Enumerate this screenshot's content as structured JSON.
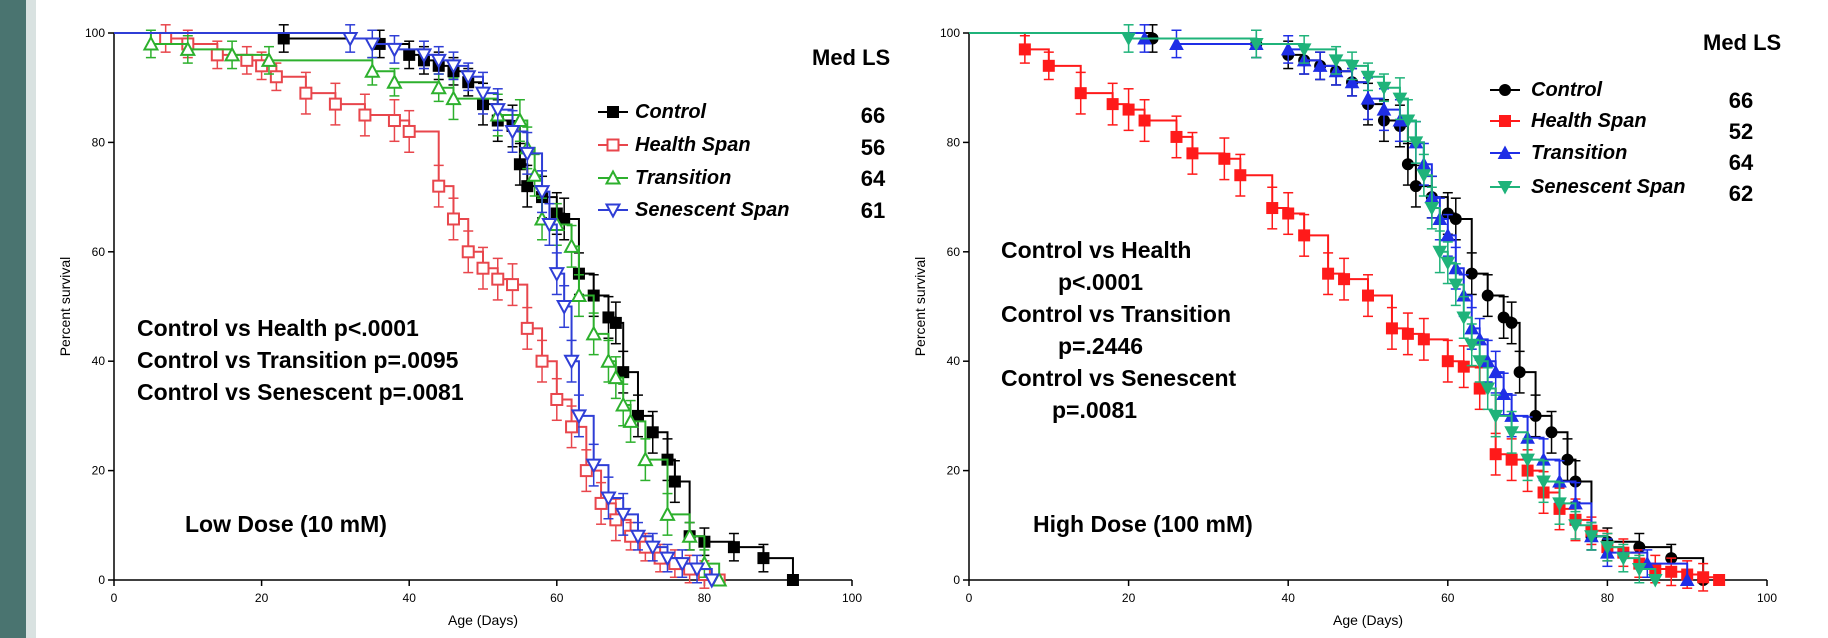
{
  "theme": {
    "strip_color": "#4a7470",
    "strip_light": "#d9e2e1"
  },
  "chart_data": [
    {
      "type": "line",
      "xlabel": "Age (Days)",
      "ylabel": "Percent survival",
      "xlim": [
        0,
        100
      ],
      "ylim": [
        0,
        100
      ],
      "xticks": [
        0,
        20,
        40,
        60,
        80,
        100
      ],
      "yticks": [
        0,
        20,
        40,
        60,
        80,
        100
      ],
      "step": true,
      "label": "Low Dose (10 mM)",
      "med_ls_header": "Med LS",
      "legend_position": "top-right",
      "annotations": [
        "Control vs  Health  p<.0001",
        "Control vs Transition p=.0095",
        "Control vs Senescent p=.0081"
      ],
      "series": [
        {
          "name": "Control",
          "marker": "square-filled",
          "color": "#000000",
          "med_ls": "66",
          "x": [
            0,
            23,
            36,
            40,
            42,
            44,
            46,
            48,
            50,
            52,
            54,
            55,
            56,
            58,
            60,
            61,
            63,
            65,
            67,
            68,
            69,
            71,
            73,
            75,
            76,
            78,
            80,
            84,
            88,
            92
          ],
          "y": [
            100,
            99,
            98,
            96,
            95,
            94,
            93,
            91,
            87,
            84,
            83,
            76,
            72,
            70,
            67,
            66,
            56,
            52,
            48,
            47,
            38,
            30,
            27,
            22,
            18,
            8,
            7,
            6,
            4,
            0
          ]
        },
        {
          "name": "Health Span",
          "marker": "square-open",
          "color": "#e8464c",
          "med_ls": "56",
          "x": [
            0,
            7,
            10,
            14,
            18,
            20,
            22,
            26,
            30,
            34,
            38,
            40,
            44,
            46,
            48,
            50,
            52,
            54,
            56,
            58,
            60,
            62,
            64,
            66,
            68,
            70,
            72,
            74,
            76,
            78,
            80,
            82
          ],
          "y": [
            100,
            99,
            98,
            96,
            95,
            94,
            92,
            89,
            87,
            85,
            84,
            82,
            72,
            66,
            60,
            57,
            55,
            54,
            46,
            40,
            33,
            28,
            20,
            14,
            11,
            8,
            6,
            4,
            3,
            2,
            1,
            0
          ]
        },
        {
          "name": "Transition",
          "marker": "triangle-open",
          "color": "#2db02d",
          "med_ls": "64",
          "x": [
            0,
            5,
            10,
            16,
            21,
            35,
            38,
            44,
            46,
            52,
            55,
            56,
            57,
            58,
            60,
            62,
            63,
            65,
            67,
            68,
            69,
            70,
            72,
            75,
            78,
            80,
            82
          ],
          "y": [
            100,
            98,
            97,
            96,
            95,
            93,
            91,
            90,
            88,
            85,
            84,
            79,
            74,
            66,
            65,
            61,
            52,
            45,
            40,
            37,
            32,
            29,
            22,
            12,
            8,
            3,
            0
          ]
        },
        {
          "name": "Senescent Span",
          "marker": "triangle-down-open",
          "color": "#2f3ed6",
          "med_ls": "61",
          "x": [
            0,
            32,
            35,
            38,
            42,
            44,
            46,
            48,
            50,
            52,
            54,
            56,
            58,
            59,
            60,
            61,
            62,
            63,
            65,
            67,
            69,
            71,
            73,
            75,
            77,
            79,
            81
          ],
          "y": [
            100,
            99,
            98,
            97,
            96,
            95,
            94,
            92,
            89,
            86,
            82,
            78,
            71,
            65,
            56,
            50,
            40,
            30,
            21,
            15,
            12,
            8,
            6,
            4,
            3,
            2,
            0
          ]
        }
      ]
    },
    {
      "type": "line",
      "xlabel": "Age (Days)",
      "ylabel": "Percent survival",
      "xlim": [
        0,
        100
      ],
      "ylim": [
        0,
        100
      ],
      "xticks": [
        0,
        20,
        40,
        60,
        80,
        100
      ],
      "yticks": [
        0,
        20,
        40,
        60,
        80,
        100
      ],
      "step": true,
      "label": "High Dose (100 mM)",
      "med_ls_header": "Med LS",
      "legend_position": "top-right",
      "annotations": [
        "Control vs Health",
        "p<.0001",
        "Control vs Transition",
        "p=.2446",
        "Control vs Senescent",
        "p=.0081"
      ],
      "series": [
        {
          "name": "Control",
          "marker": "circle-filled",
          "color": "#000000",
          "med_ls": "66",
          "x": [
            0,
            23,
            36,
            40,
            42,
            44,
            46,
            48,
            50,
            52,
            54,
            55,
            56,
            58,
            60,
            61,
            63,
            65,
            67,
            68,
            69,
            71,
            73,
            75,
            76,
            78,
            80,
            84,
            88,
            92
          ],
          "y": [
            100,
            99,
            98,
            96,
            95,
            94,
            93,
            91,
            87,
            84,
            83,
            76,
            72,
            70,
            67,
            66,
            56,
            52,
            48,
            47,
            38,
            30,
            27,
            22,
            18,
            8,
            7,
            6,
            4,
            0
          ]
        },
        {
          "name": "Health Span",
          "marker": "square-filled",
          "color": "#ff1a1a",
          "med_ls": "52",
          "x": [
            0,
            7,
            10,
            14,
            18,
            20,
            22,
            26,
            28,
            32,
            34,
            38,
            40,
            42,
            45,
            47,
            50,
            53,
            55,
            57,
            60,
            62,
            64,
            66,
            68,
            70,
            72,
            74,
            76,
            78,
            80,
            82,
            84,
            86,
            88,
            90,
            92,
            94
          ],
          "y": [
            100,
            97,
            94,
            89,
            87,
            86,
            84,
            81,
            78,
            77,
            74,
            68,
            67,
            63,
            56,
            55,
            52,
            46,
            45,
            44,
            40,
            39,
            35,
            23,
            22,
            20,
            16,
            13,
            11,
            9,
            6,
            5,
            3,
            2,
            1.5,
            1,
            0.5,
            0
          ]
        },
        {
          "name": "Transition",
          "marker": "triangle-filled",
          "color": "#1f2ee6",
          "med_ls": "64",
          "x": [
            0,
            22,
            26,
            36,
            40,
            42,
            44,
            46,
            48,
            50,
            52,
            54,
            56,
            57,
            58,
            59,
            60,
            61,
            62,
            63,
            64,
            65,
            66,
            67,
            68,
            70,
            72,
            74,
            76,
            78,
            80,
            85,
            90
          ],
          "y": [
            100,
            99,
            98,
            98,
            97,
            95,
            94,
            93,
            91,
            88,
            86,
            84,
            80,
            76,
            70,
            66,
            63,
            57,
            52,
            46,
            44,
            40,
            38,
            34,
            30,
            26,
            22,
            18,
            14,
            8,
            5,
            3,
            0
          ]
        },
        {
          "name": "Senescent Span",
          "marker": "triangle-down-filled",
          "color": "#1fb37a",
          "med_ls": "62",
          "x": [
            0,
            20,
            36,
            42,
            46,
            48,
            50,
            52,
            54,
            55,
            56,
            57,
            58,
            59,
            60,
            61,
            62,
            63,
            64,
            65,
            66,
            68,
            70,
            72,
            74,
            76,
            78,
            80,
            82,
            84,
            86
          ],
          "y": [
            100,
            99,
            98,
            97,
            95,
            94,
            92,
            90,
            88,
            84,
            80,
            74,
            68,
            60,
            58,
            54,
            48,
            43,
            40,
            35,
            30,
            27,
            22,
            18,
            14,
            10,
            8,
            6,
            4,
            2,
            0
          ]
        }
      ]
    }
  ]
}
